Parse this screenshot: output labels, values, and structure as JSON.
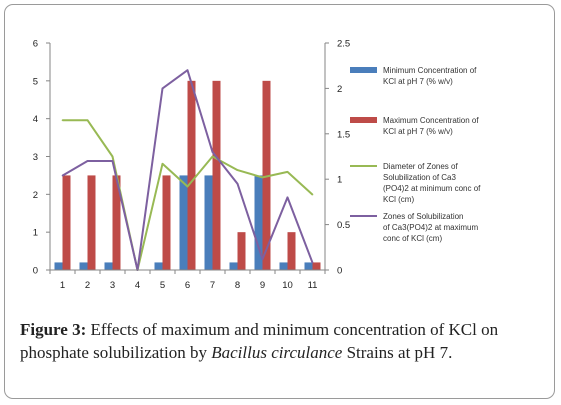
{
  "chart_data": {
    "type": "bar",
    "categories": [
      "1",
      "2",
      "3",
      "4",
      "5",
      "6",
      "7",
      "8",
      "9",
      "10",
      "11"
    ],
    "left_axis": {
      "ylim": [
        0,
        6
      ],
      "ticks": [
        "0",
        "1",
        "2",
        "3",
        "4",
        "5",
        "6"
      ]
    },
    "right_axis": {
      "ylim": [
        0,
        2.5
      ],
      "ticks": [
        "0",
        "0.5",
        "1",
        "1.5",
        "2",
        "2.5"
      ]
    },
    "series": [
      {
        "name": "Minimum Concentration of KCl at pH 7 (% w/v)",
        "kind": "bar",
        "axis": "left",
        "color": "#4a7ebb",
        "values": [
          0.2,
          0.2,
          0.2,
          0,
          0.2,
          2.5,
          2.5,
          0.2,
          2.5,
          0.2,
          0.2
        ]
      },
      {
        "name": "Maximum Concentration of KCl at pH 7 (% w/v)",
        "kind": "bar",
        "axis": "left",
        "color": "#be4b48",
        "values": [
          2.5,
          2.5,
          2.5,
          0,
          2.5,
          5,
          5,
          1,
          5,
          1,
          0.2
        ]
      },
      {
        "name": "Diameter of Zones of Solubilization of Ca3 (PO4)2 at minimum conc of KCl (cm)",
        "kind": "line",
        "axis": "right",
        "color": "#98b954",
        "values": [
          1.65,
          1.65,
          1.25,
          0,
          1.17,
          0.92,
          1.25,
          1.1,
          1.02,
          1.08,
          0.83
        ]
      },
      {
        "name": "Zones of Solubilization of Ca3(PO4)2 at maximum conc of KCl (cm)",
        "kind": "line",
        "axis": "right",
        "color": "#7d60a0",
        "values": [
          1.04,
          1.2,
          1.2,
          0,
          2.0,
          2.2,
          1.3,
          0.95,
          0.12,
          0.8,
          0.08
        ]
      }
    ]
  },
  "caption": {
    "label": "Figure 3:",
    "text_before": " Effects of maximum and minimum concentration of KCl on phosphate solubilization by ",
    "species": "Bacillus circulance",
    "text_after": " Strains at pH 7."
  }
}
